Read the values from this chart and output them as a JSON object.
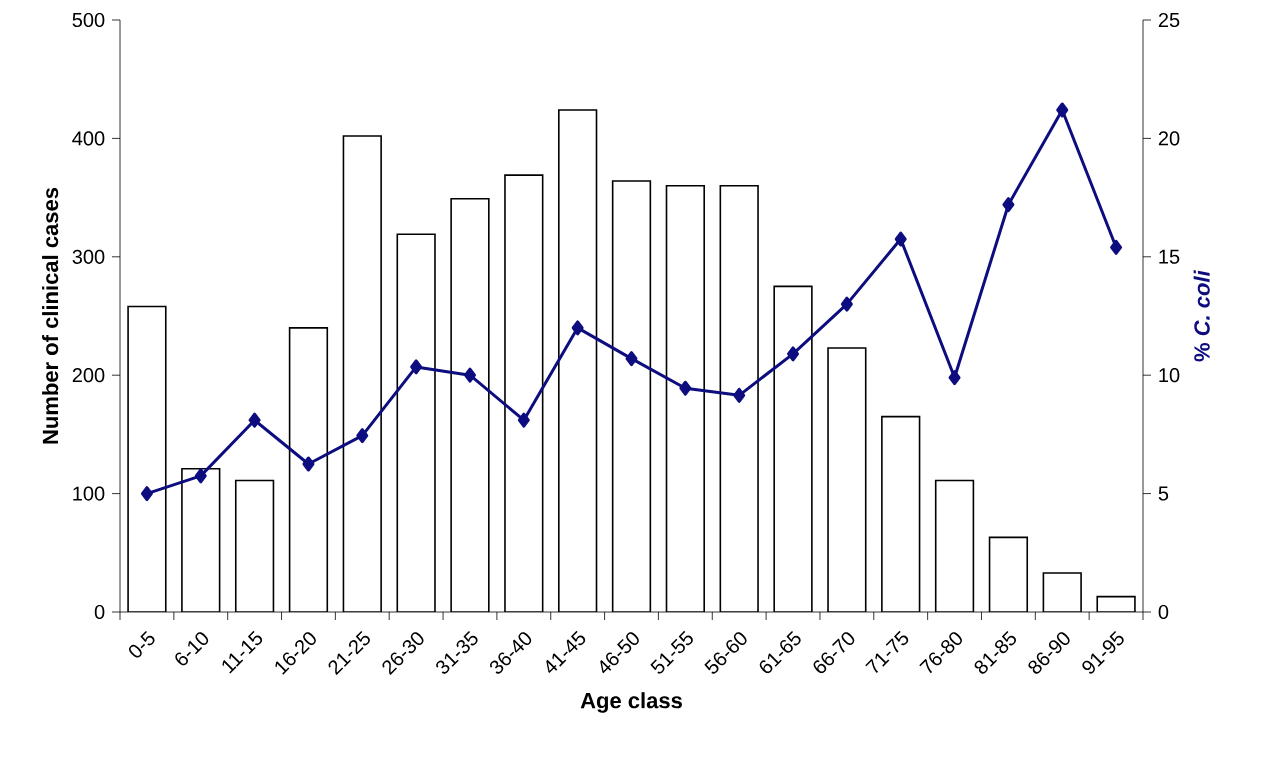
{
  "chart_data": {
    "type": "bar",
    "xlabel": "Age class",
    "ylabel": "Number of clinical cases",
    "y2label": "% *C. coli*",
    "categories": [
      "0-5",
      "6-10",
      "11-15",
      "16-20",
      "21-25",
      "26-30",
      "31-35",
      "36-40",
      "41-45",
      "46-50",
      "51-55",
      "56-60",
      "61-65",
      "66-70",
      "71-75",
      "76-80",
      "81-85",
      "86-90",
      "91-95"
    ],
    "ylim": [
      0,
      500
    ],
    "yticks": [
      0,
      100,
      200,
      300,
      400,
      500
    ],
    "y2lim": [
      0,
      25
    ],
    "y2ticks": [
      0,
      5,
      10,
      15,
      20,
      25
    ],
    "series": [
      {
        "color": "#ffffff",
        "values": [
          258,
          121,
          111,
          240,
          402,
          319,
          349,
          369,
          424,
          364,
          360,
          360,
          275,
          223,
          165,
          111,
          63,
          33,
          13
        ]
      },
      {
        "type": "line",
        "axis": "y2",
        "color": "#0d0d80",
        "marker": "diamond",
        "values": [
          5.0,
          5.75,
          8.1,
          6.25,
          7.45,
          10.35,
          10.0,
          8.1,
          12.0,
          10.7,
          9.45,
          9.15,
          10.9,
          13.0,
          15.75,
          9.9,
          17.2,
          21.2,
          15.4
        ]
      }
    ]
  }
}
